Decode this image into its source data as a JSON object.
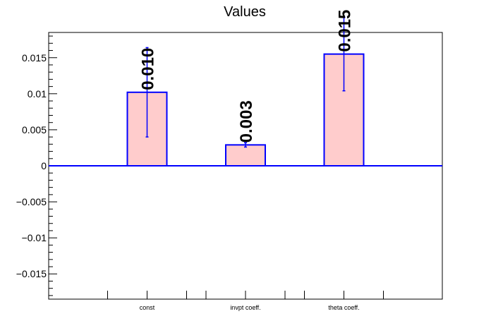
{
  "chart_data": {
    "type": "bar",
    "title": "Values",
    "xlabel": "",
    "ylabel": "",
    "categories": [
      "const",
      "invpt coeff.",
      "theta coeff."
    ],
    "values": [
      0.0102,
      0.0029,
      0.0155
    ],
    "errors": [
      0.0062,
      0.0003,
      0.0051
    ],
    "data_labels": [
      "0.010",
      "0.003",
      "0.015"
    ],
    "ylim": [
      -0.0185,
      0.0185
    ],
    "yticks": [
      {
        "value": 0.015,
        "label": "0.015"
      },
      {
        "value": 0.01,
        "label": "0.01"
      },
      {
        "value": 0.005,
        "label": "0.005"
      },
      {
        "value": 0,
        "label": "0"
      },
      {
        "value": -0.005,
        "label": "−0.005"
      },
      {
        "value": -0.01,
        "label": "−0.01"
      },
      {
        "value": -0.015,
        "label": "−0.015"
      }
    ],
    "y_minor_step": 0.001,
    "grid": false,
    "colors": {
      "bar_fill": "#ffcccc",
      "bar_edge": "#0000ff",
      "axis": "#000000"
    }
  }
}
